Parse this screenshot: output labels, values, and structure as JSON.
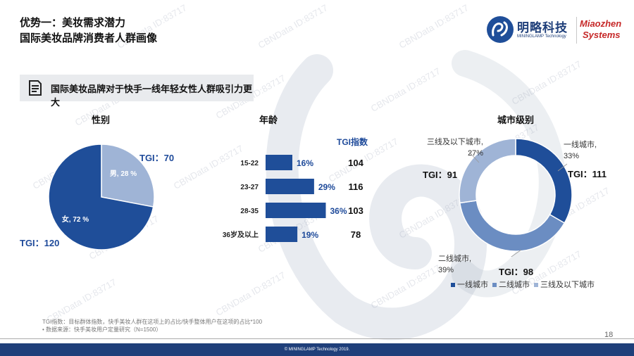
{
  "header": {
    "title_line1": "优势一：美妆需求潜力",
    "title_line2": "国际美妆品牌消费者人群画像"
  },
  "logo": {
    "cn": "明略科技",
    "en": "MININGLAMP Technology",
    "mz_line1": "Miaozhen",
    "mz_line2": "Systems"
  },
  "banner": {
    "text": "国际美妆品牌对于快手一线年轻女性人群吸引力更大",
    "icon": "document-lines-icon"
  },
  "watermark": "CBNData ID:83717",
  "colors": {
    "dark_blue": "#1f4e99",
    "mid_blue": "#6b8dc2",
    "light_blue": "#9fb4d6",
    "text_blue": "#1e4a9a",
    "footer": "#1f3f7a"
  },
  "chart_data": [
    {
      "type": "pie",
      "title": "性别",
      "slices": [
        {
          "name": "男",
          "value": 28,
          "label": "男, 28 %",
          "tgi": "TGI：70",
          "color": "#9fb4d6"
        },
        {
          "name": "女",
          "value": 72,
          "label": "女, 72 %",
          "tgi": "TGI：120",
          "color": "#1f4e99"
        }
      ]
    },
    {
      "type": "bar",
      "title": "年龄",
      "index_header": "TGI指数",
      "categories": [
        "15-22",
        "23-27",
        "28-35",
        "36岁及以上"
      ],
      "values": [
        16,
        29,
        36,
        19
      ],
      "value_labels": [
        "16%",
        "29%",
        "36%",
        "19%"
      ],
      "tgi": [
        "104",
        "116",
        "103",
        "78"
      ],
      "color": "#1f4e99"
    },
    {
      "type": "pie",
      "subtype": "donut",
      "title": "城市级别",
      "slices": [
        {
          "name": "一线城市",
          "value": 33,
          "label_line1": "一线城市,",
          "label_line2": "33%",
          "tgi": "TGI：111",
          "color": "#1f4e99"
        },
        {
          "name": "二线城市",
          "value": 39,
          "label_line1": "二线城市,",
          "label_line2": "39%",
          "tgi": "TGI：98",
          "color": "#6b8dc2"
        },
        {
          "name": "三线及以下城市",
          "value": 27,
          "label_line1": "三线及以下城市,",
          "label_line2": "27%",
          "tgi": "TGI：91",
          "color": "#9fb4d6"
        }
      ],
      "legend": [
        "一线城市",
        "二线城市",
        "三线及以下城市"
      ],
      "legend_placement": "bottom"
    }
  ],
  "footnotes": {
    "line1": "TGI指数：目标群体指数，快手美妆人群在这项上的占比/快手整体用户在这项的占比*100",
    "line2": "•    数据来源：快手美妆用户定量研究（N=1500）"
  },
  "page_number": "18",
  "footer": "© MININGLAMP Technology 2019."
}
